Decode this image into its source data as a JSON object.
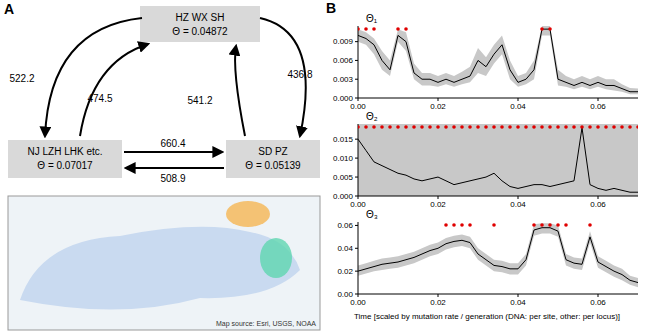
{
  "panel_a": {
    "letter": "A",
    "nodes": [
      {
        "label": "HZ WX SH",
        "theta": "Θ = 0.04872"
      },
      {
        "label": "NJ LZH LHK etc.",
        "theta": "Θ = 0.07017"
      },
      {
        "label": "SD PZ",
        "theta": "Θ = 0.05139"
      }
    ],
    "edges": [
      {
        "from": 0,
        "to": 1,
        "value": 522.2
      },
      {
        "from": 1,
        "to": 0,
        "value": 474.5
      },
      {
        "from": 2,
        "to": 0,
        "value": 541.2
      },
      {
        "from": 0,
        "to": 2,
        "value": 436.8
      },
      {
        "from": 1,
        "to": 2,
        "value": 660.4
      },
      {
        "from": 2,
        "to": 1,
        "value": 508.9
      }
    ],
    "map_source": "Map source: Esri, USGS, NOAA"
  },
  "panel_b": {
    "letter": "B",
    "x_label": "Time [scaled by mutation rate / generation (DNA: per site, other: per locus)]"
  },
  "chart_data": [
    {
      "type": "line",
      "title": "Θ₁",
      "x": [
        0,
        0.002,
        0.004,
        0.006,
        0.008,
        0.01,
        0.012,
        0.014,
        0.016,
        0.018,
        0.02,
        0.022,
        0.024,
        0.026,
        0.028,
        0.03,
        0.032,
        0.034,
        0.036,
        0.038,
        0.04,
        0.042,
        0.044,
        0.046,
        0.048,
        0.05,
        0.052,
        0.054,
        0.056,
        0.058,
        0.06,
        0.062,
        0.064,
        0.066,
        0.068,
        0.07
      ],
      "xlim": [
        0,
        0.07
      ],
      "xticks": [
        {
          "value": 0,
          "label": "0.00"
        },
        {
          "value": 0.02,
          "label": "0.02"
        },
        {
          "value": 0.04,
          "label": "0.04"
        },
        {
          "value": 0.06,
          "label": "0.06"
        }
      ],
      "ylim": [
        0,
        0.0115
      ],
      "yticks": [
        {
          "value": 0,
          "label": "0.000"
        },
        {
          "value": 0.003,
          "label": "0.003"
        },
        {
          "value": 0.006,
          "label": "0.006"
        },
        {
          "value": 0.009,
          "label": "0.009"
        }
      ],
      "series": [
        {
          "type": "area",
          "color": "#c8c8c8",
          "lower": [
            0.009,
            0.0085,
            0.007,
            0.0045,
            0.0035,
            0.009,
            0.0075,
            0.003,
            0.002,
            0.002,
            0.0018,
            0.0022,
            0.0018,
            0.0022,
            0.0025,
            0.004,
            0.0035,
            0.0055,
            0.007,
            0.003,
            0.0018,
            0.0022,
            0.003,
            0.01,
            0.01,
            0.002,
            0.0018,
            0.0014,
            0.0018,
            0.0014,
            0.0018,
            0.0014,
            0.0012,
            0.001,
            0.0006,
            0.0006
          ],
          "upper": [
            0.011,
            0.0105,
            0.0095,
            0.0075,
            0.006,
            0.011,
            0.0105,
            0.0055,
            0.004,
            0.004,
            0.0035,
            0.004,
            0.0035,
            0.0042,
            0.005,
            0.008,
            0.0065,
            0.0085,
            0.01,
            0.006,
            0.0035,
            0.004,
            0.006,
            0.0115,
            0.0115,
            0.0045,
            0.0035,
            0.003,
            0.0035,
            0.003,
            0.0035,
            0.003,
            0.003,
            0.0022,
            0.0016,
            0.0015
          ]
        },
        {
          "type": "line",
          "color": "#000000",
          "values": [
            0.01,
            0.0095,
            0.0085,
            0.006,
            0.0045,
            0.01,
            0.009,
            0.004,
            0.003,
            0.003,
            0.0025,
            0.003,
            0.0025,
            0.003,
            0.0035,
            0.006,
            0.005,
            0.007,
            0.0085,
            0.0045,
            0.0025,
            0.003,
            0.0045,
            0.011,
            0.011,
            0.003,
            0.0025,
            0.002,
            0.0025,
            0.002,
            0.0025,
            0.002,
            0.002,
            0.0015,
            0.001,
            0.001
          ]
        },
        {
          "type": "scatter",
          "marker": "circle",
          "color": "#e00000",
          "x": [
            0,
            0.002,
            0.004,
            0.01,
            0.012,
            0.046,
            0.048
          ]
        }
      ]
    },
    {
      "type": "line",
      "title": "Θ₂",
      "x": [
        0,
        0.002,
        0.004,
        0.006,
        0.008,
        0.01,
        0.012,
        0.014,
        0.016,
        0.018,
        0.02,
        0.022,
        0.024,
        0.026,
        0.028,
        0.03,
        0.032,
        0.034,
        0.036,
        0.038,
        0.04,
        0.042,
        0.044,
        0.046,
        0.048,
        0.05,
        0.052,
        0.054,
        0.056,
        0.058,
        0.06,
        0.062,
        0.064,
        0.066,
        0.068,
        0.07
      ],
      "xlim": [
        0,
        0.07
      ],
      "xticks": [
        {
          "value": 0,
          "label": "0.00"
        },
        {
          "value": 0.02,
          "label": "0.02"
        },
        {
          "value": 0.04,
          "label": "0.04"
        },
        {
          "value": 0.06,
          "label": "0.06"
        }
      ],
      "ylim": [
        0,
        0.019
      ],
      "yticks": [
        {
          "value": 0,
          "label": "0.000"
        },
        {
          "value": 0.005,
          "label": "0.005"
        },
        {
          "value": 0.01,
          "label": "0.010"
        },
        {
          "value": 0.015,
          "label": "0.015"
        }
      ],
      "series": [
        {
          "type": "area",
          "color": "#c8c8c8",
          "lower": [
            0,
            0,
            0,
            0,
            0,
            0,
            0,
            0,
            0,
            0,
            0,
            0,
            0,
            0,
            0,
            0,
            0,
            0,
            0,
            0,
            0,
            0,
            0,
            0,
            0,
            0,
            0,
            0,
            0,
            0,
            0,
            0,
            0,
            0,
            0,
            0
          ],
          "upper": [
            0.019,
            0.019,
            0.019,
            0.019,
            0.019,
            0.019,
            0.019,
            0.019,
            0.019,
            0.019,
            0.019,
            0.019,
            0.019,
            0.019,
            0.019,
            0.019,
            0.019,
            0.019,
            0.019,
            0.019,
            0.019,
            0.019,
            0.019,
            0.019,
            0.019,
            0.019,
            0.019,
            0.019,
            0.019,
            0.019,
            0.019,
            0.019,
            0.019,
            0.019,
            0.019,
            0.019
          ]
        },
        {
          "type": "line",
          "color": "#000000",
          "values": [
            0.015,
            0.012,
            0.009,
            0.008,
            0.007,
            0.006,
            0.0055,
            0.0045,
            0.004,
            0.0045,
            0.005,
            0.004,
            0.003,
            0.0035,
            0.004,
            0.0045,
            0.005,
            0.006,
            0.004,
            0.0025,
            0.002,
            0.0025,
            0.003,
            0.003,
            0.0025,
            0.003,
            0.0035,
            0.004,
            0.018,
            0.003,
            0.002,
            0.0015,
            0.002,
            0.0015,
            0.001,
            0.001
          ]
        },
        {
          "type": "scatter",
          "marker": "circle",
          "color": "#e00000",
          "x": [
            0,
            0.002,
            0.004,
            0.006,
            0.008,
            0.01,
            0.012,
            0.014,
            0.016,
            0.018,
            0.02,
            0.022,
            0.024,
            0.026,
            0.028,
            0.03,
            0.032,
            0.034,
            0.036,
            0.038,
            0.04,
            0.042,
            0.044,
            0.046,
            0.048,
            0.05,
            0.052,
            0.054,
            0.056,
            0.058,
            0.06,
            0.062,
            0.064,
            0.066,
            0.068,
            0.07
          ]
        }
      ]
    },
    {
      "type": "line",
      "title": "Θ₃",
      "x": [
        0,
        0.002,
        0.004,
        0.006,
        0.008,
        0.01,
        0.012,
        0.014,
        0.016,
        0.018,
        0.02,
        0.022,
        0.024,
        0.026,
        0.028,
        0.03,
        0.032,
        0.034,
        0.036,
        0.038,
        0.04,
        0.042,
        0.044,
        0.046,
        0.048,
        0.05,
        0.052,
        0.054,
        0.056,
        0.058,
        0.06,
        0.062,
        0.064,
        0.066,
        0.068,
        0.07
      ],
      "xlim": [
        0,
        0.07
      ],
      "xticks": [
        {
          "value": 0,
          "label": "0.00"
        },
        {
          "value": 0.02,
          "label": "0.02"
        },
        {
          "value": 0.04,
          "label": "0.04"
        },
        {
          "value": 0.06,
          "label": "0.06"
        }
      ],
      "ylim": [
        0,
        0.063
      ],
      "yticks": [
        {
          "value": 0,
          "label": "0.00"
        },
        {
          "value": 0.02,
          "label": "0.02"
        },
        {
          "value": 0.04,
          "label": "0.04"
        },
        {
          "value": 0.06,
          "label": "0.06"
        }
      ],
      "series": [
        {
          "type": "area",
          "color": "#c8c8c8",
          "lower": [
            0.016,
            0.018,
            0.02,
            0.021,
            0.022,
            0.023,
            0.025,
            0.027,
            0.03,
            0.033,
            0.035,
            0.039,
            0.041,
            0.042,
            0.04,
            0.03,
            0.025,
            0.02,
            0.019,
            0.017,
            0.017,
            0.025,
            0.051,
            0.053,
            0.053,
            0.05,
            0.025,
            0.022,
            0.021,
            0.045,
            0.023,
            0.019,
            0.015,
            0.012,
            0.008,
            0.006
          ],
          "upper": [
            0.025,
            0.027,
            0.029,
            0.031,
            0.032,
            0.033,
            0.035,
            0.037,
            0.04,
            0.043,
            0.045,
            0.049,
            0.051,
            0.052,
            0.05,
            0.04,
            0.035,
            0.03,
            0.029,
            0.027,
            0.027,
            0.035,
            0.061,
            0.062,
            0.062,
            0.06,
            0.035,
            0.032,
            0.031,
            0.055,
            0.033,
            0.029,
            0.025,
            0.022,
            0.016,
            0.014
          ]
        },
        {
          "type": "line",
          "color": "#000000",
          "values": [
            0.02,
            0.022,
            0.024,
            0.026,
            0.027,
            0.028,
            0.03,
            0.032,
            0.035,
            0.038,
            0.04,
            0.044,
            0.046,
            0.047,
            0.045,
            0.035,
            0.03,
            0.025,
            0.024,
            0.022,
            0.022,
            0.03,
            0.056,
            0.058,
            0.058,
            0.055,
            0.03,
            0.027,
            0.026,
            0.05,
            0.028,
            0.024,
            0.02,
            0.017,
            0.012,
            0.01
          ]
        },
        {
          "type": "scatter",
          "marker": "circle",
          "color": "#e00000",
          "x": [
            0.022,
            0.024,
            0.026,
            0.028,
            0.034,
            0.044,
            0.046,
            0.048,
            0.05,
            0.052,
            0.058
          ]
        }
      ]
    }
  ]
}
